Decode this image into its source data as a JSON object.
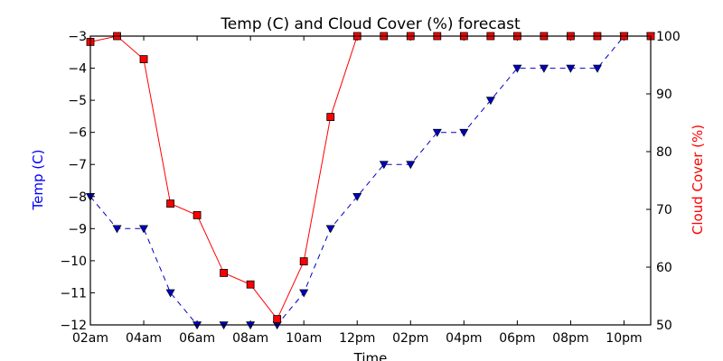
{
  "chart_data": {
    "type": "line",
    "title": "Temp (C) and Cloud Cover (%) forecast",
    "xlabel": "Time",
    "ylabel_left": "Temp (C)",
    "ylabel_right": "Cloud Cover (%)",
    "ylim_left": [
      -12,
      -3
    ],
    "ylim_right": [
      50,
      100
    ],
    "yticks_left": [
      "−3",
      "−4",
      "−5",
      "−6",
      "−7",
      "−8",
      "−9",
      "−10",
      "−11",
      "−12"
    ],
    "yticks_left_values": [
      -3,
      -4,
      -5,
      -6,
      -7,
      -8,
      -9,
      -10,
      -11,
      -12
    ],
    "yticks_right": [
      "100",
      "90",
      "80",
      "70",
      "60",
      "50"
    ],
    "yticks_right_values": [
      100,
      90,
      80,
      70,
      60,
      50
    ],
    "x_hours": [
      2,
      3,
      4,
      5,
      6,
      7,
      8,
      9,
      10,
      11,
      12,
      13,
      14,
      15,
      16,
      17,
      18,
      19,
      20,
      21,
      22,
      23
    ],
    "xlim_hours": [
      2,
      23
    ],
    "xticks": [
      "02am",
      "04am",
      "06am",
      "08am",
      "10am",
      "12pm",
      "02pm",
      "04pm",
      "06pm",
      "08pm",
      "10pm"
    ],
    "xticks_hours": [
      2,
      4,
      6,
      8,
      10,
      12,
      14,
      16,
      18,
      20,
      22
    ],
    "series": [
      {
        "axis": "left",
        "color": "#0000bf",
        "marker": "triangle-down",
        "linestyle": "dashed",
        "values": [
          -8,
          -9,
          -9,
          -11,
          -12,
          -12,
          -12,
          -12,
          -11,
          -9,
          -8,
          -7,
          -7,
          -6,
          -6,
          -5,
          -4,
          -4,
          -4,
          -4,
          -3,
          -3
        ]
      },
      {
        "axis": "right",
        "color": "#ff0000",
        "marker": "square",
        "linestyle": "solid",
        "values": [
          99,
          100,
          96,
          71,
          69,
          59,
          57,
          51,
          61,
          86,
          100,
          100,
          100,
          100,
          100,
          100,
          100,
          100,
          100,
          100,
          100,
          100
        ]
      }
    ],
    "colors": {
      "left_axis_label": "#0000ff",
      "right_axis_label": "#ff0000"
    }
  }
}
